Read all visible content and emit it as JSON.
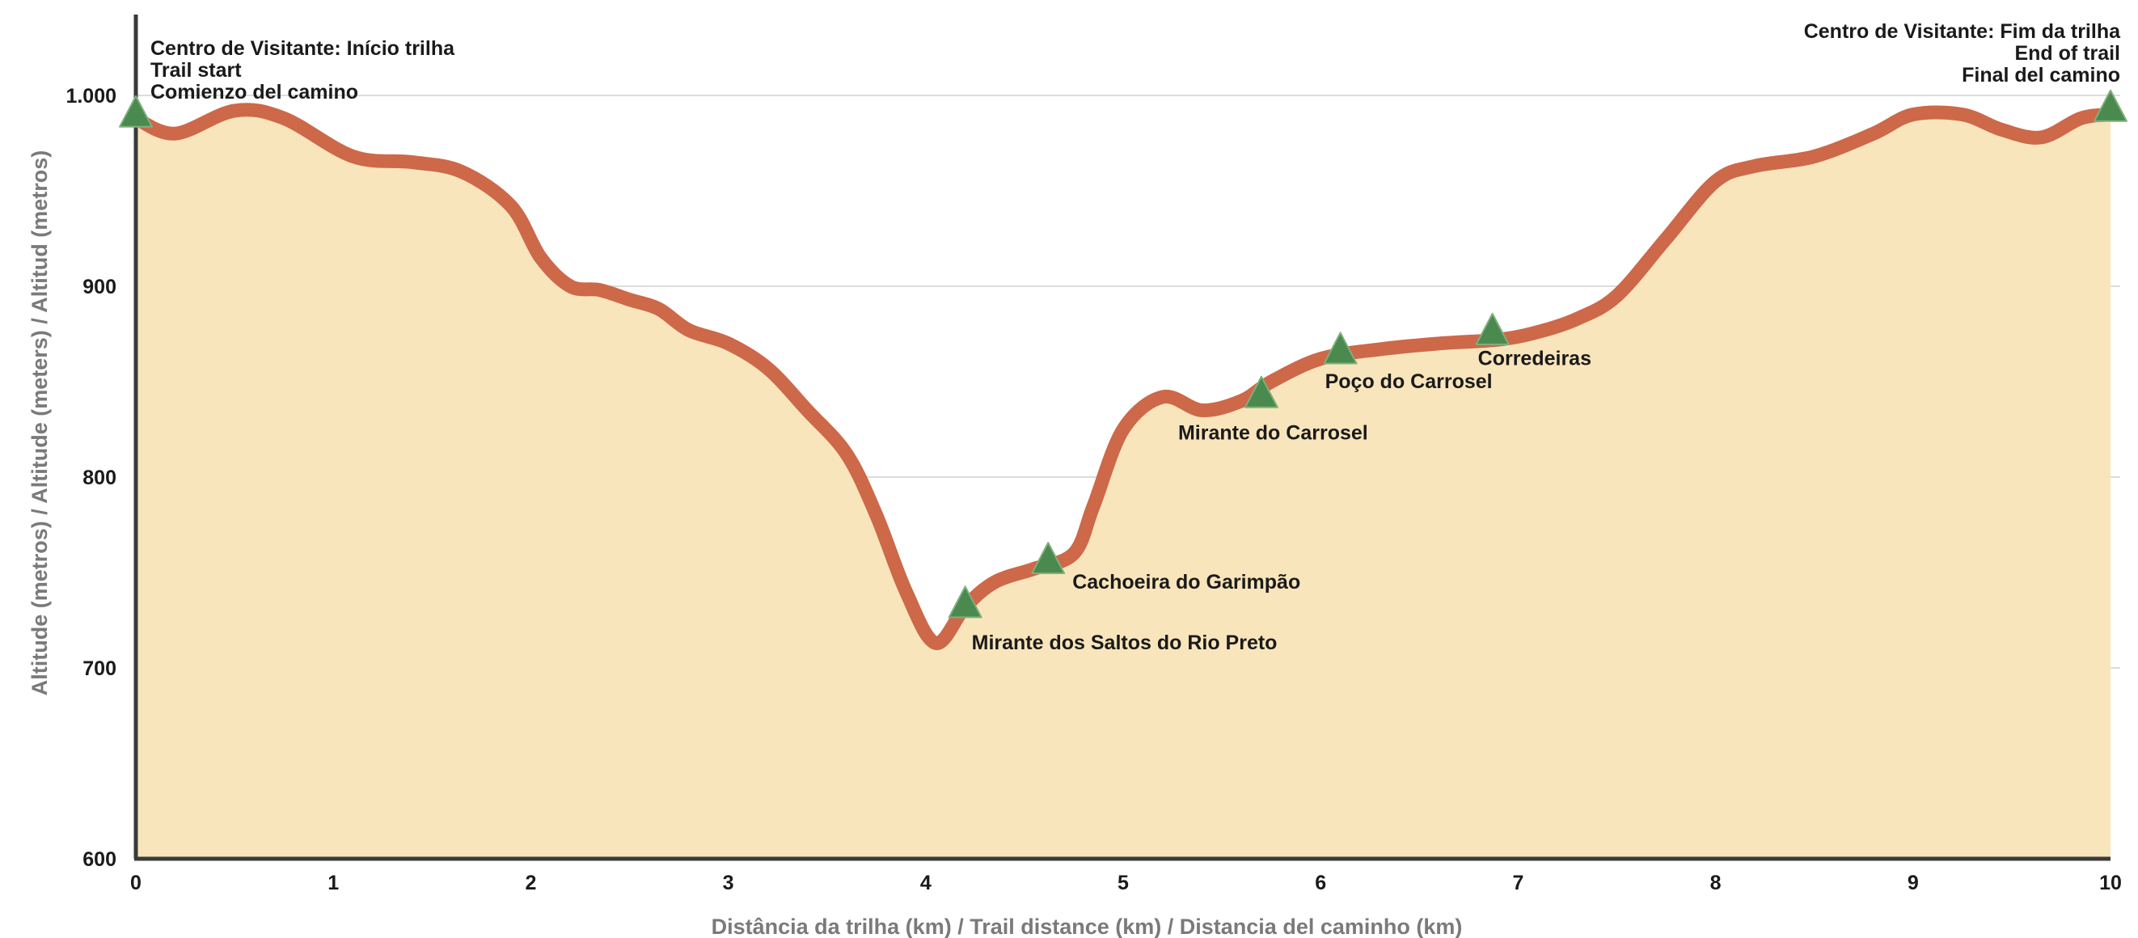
{
  "chart_data": {
    "type": "area",
    "xlabel": "Distância da trilha (km) / Trail distance (km) / Distancia del caminho (km)",
    "ylabel": "Altitude (metros) / Altitude (meters) / Altitud (metros)",
    "xlim": [
      0,
      10
    ],
    "ylim": [
      600,
      1050
    ],
    "x_ticks": [
      "0",
      "1",
      "2",
      "3",
      "4",
      "5",
      "6",
      "7",
      "8",
      "9",
      "10"
    ],
    "y_ticks": [
      {
        "value": 600,
        "label": "600"
      },
      {
        "value": 700,
        "label": "700"
      },
      {
        "value": 800,
        "label": "800"
      },
      {
        "value": 900,
        "label": "900"
      },
      {
        "value": 1000,
        "label": "1.000"
      }
    ],
    "grid": "horizontal",
    "series": [
      {
        "x": [
          0,
          0.2,
          0.5,
          0.75,
          1.1,
          1.4,
          1.65,
          1.9,
          2.05,
          2.2,
          2.35,
          2.5,
          2.65,
          2.8,
          3.0,
          3.2,
          3.4,
          3.6,
          3.75,
          3.9,
          4.05,
          4.2,
          4.35,
          4.55,
          4.75,
          4.85,
          5.0,
          5.2,
          5.4,
          5.6,
          5.75,
          6.0,
          6.3,
          6.6,
          6.9,
          7.1,
          7.3,
          7.5,
          7.75,
          8.0,
          8.2,
          8.5,
          8.8,
          9.0,
          9.25,
          9.45,
          9.65,
          9.85,
          10.0
        ],
        "y": [
          988,
          980,
          992,
          988,
          968,
          965,
          960,
          942,
          915,
          900,
          898,
          893,
          888,
          877,
          870,
          857,
          835,
          812,
          780,
          740,
          713,
          732,
          745,
          752,
          760,
          785,
          825,
          842,
          835,
          840,
          850,
          862,
          867,
          870,
          872,
          876,
          883,
          895,
          925,
          955,
          963,
          968,
          980,
          990,
          990,
          982,
          978,
          988,
          990
        ]
      }
    ],
    "colors": {
      "line": "#cd6849",
      "fill": "#f9e5bb",
      "marker": "#4a8a4e",
      "axis": "#3a3a3a",
      "grid": "#dcdcdc",
      "axis_label": "#7a7a7a"
    },
    "points_of_interest": [
      {
        "x": 4.2,
        "y": 733,
        "label": "Mirante dos Saltos do Rio Preto"
      },
      {
        "x": 4.62,
        "y": 756,
        "label": "Cachoeira do Garimpão"
      },
      {
        "x": 5.7,
        "y": 843,
        "label": "Mirante do Carrosel"
      },
      {
        "x": 6.1,
        "y": 866,
        "label": "Poço do Carrosel"
      },
      {
        "x": 6.87,
        "y": 876,
        "label": "Corredeiras"
      }
    ],
    "endpoints": {
      "start": {
        "x": 0,
        "y": 990,
        "lines": [
          "Centro de Visitante: Início trilha",
          "Trail start",
          "Comienzo del camino"
        ]
      },
      "end": {
        "x": 10,
        "y": 993,
        "lines": [
          "Centro de Visitante: Fim da trilha",
          "End of trail",
          "Final del camino"
        ]
      }
    }
  }
}
